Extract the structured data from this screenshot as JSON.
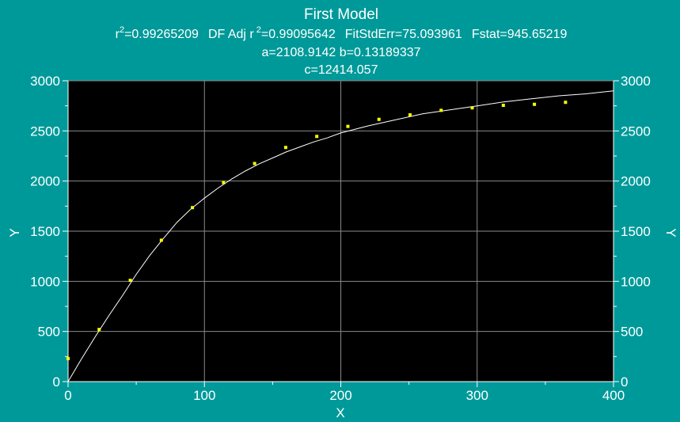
{
  "chart_data": {
    "type": "scatter",
    "title": "First Model",
    "stats_line": {
      "r2_prefix": "r",
      "r2_sup": "2",
      "r2_value": "=0.99265209",
      "adj_prefix": "DF Adj r",
      "adj_sup": "2",
      "adj_value": "=0.99095642",
      "fitstderr": "FitStdErr=75.093961",
      "fstat": "Fstat=945.65219"
    },
    "params_line1": "a=2108.9142 b=0.13189337",
    "params_line2": "c=12414.057",
    "xlabel": "X",
    "ylabel_left": "Y",
    "ylabel_right": "Y",
    "xlim": [
      0,
      400
    ],
    "ylim": [
      0,
      3000
    ],
    "x_ticks": [
      0,
      100,
      200,
      300,
      400
    ],
    "y_ticks": [
      0,
      500,
      1000,
      1500,
      2000,
      2500,
      3000
    ],
    "grid": true,
    "background": "#000000",
    "page_background": "#009999",
    "point_color": "#ffff00",
    "curve_color": "#ffffff",
    "points": [
      {
        "x": 0,
        "y": 230
      },
      {
        "x": 22.8,
        "y": 520
      },
      {
        "x": 45.6,
        "y": 1010
      },
      {
        "x": 68.4,
        "y": 1410
      },
      {
        "x": 91.2,
        "y": 1735
      },
      {
        "x": 114,
        "y": 1985
      },
      {
        "x": 136.8,
        "y": 2175
      },
      {
        "x": 159.6,
        "y": 2335
      },
      {
        "x": 182.4,
        "y": 2445
      },
      {
        "x": 205.2,
        "y": 2545
      },
      {
        "x": 228,
        "y": 2615
      },
      {
        "x": 250.8,
        "y": 2660
      },
      {
        "x": 273.6,
        "y": 2705
      },
      {
        "x": 296.4,
        "y": 2730
      },
      {
        "x": 319.2,
        "y": 2755
      },
      {
        "x": 342,
        "y": 2765
      },
      {
        "x": 364.8,
        "y": 2785
      }
    ],
    "fit_curve": [
      {
        "x": 0,
        "y": 0
      },
      {
        "x": 10,
        "y": 230
      },
      {
        "x": 20,
        "y": 450
      },
      {
        "x": 30,
        "y": 660
      },
      {
        "x": 40,
        "y": 860
      },
      {
        "x": 50,
        "y": 1070
      },
      {
        "x": 60,
        "y": 1260
      },
      {
        "x": 70,
        "y": 1430
      },
      {
        "x": 80,
        "y": 1590
      },
      {
        "x": 90,
        "y": 1720
      },
      {
        "x": 100,
        "y": 1830
      },
      {
        "x": 110,
        "y": 1930
      },
      {
        "x": 120,
        "y": 2020
      },
      {
        "x": 130,
        "y": 2100
      },
      {
        "x": 140,
        "y": 2170
      },
      {
        "x": 150,
        "y": 2230
      },
      {
        "x": 160,
        "y": 2290
      },
      {
        "x": 170,
        "y": 2340
      },
      {
        "x": 180,
        "y": 2390
      },
      {
        "x": 190,
        "y": 2430
      },
      {
        "x": 200,
        "y": 2480
      },
      {
        "x": 220,
        "y": 2550
      },
      {
        "x": 240,
        "y": 2610
      },
      {
        "x": 260,
        "y": 2670
      },
      {
        "x": 280,
        "y": 2710
      },
      {
        "x": 300,
        "y": 2750
      },
      {
        "x": 320,
        "y": 2790
      },
      {
        "x": 340,
        "y": 2820
      },
      {
        "x": 360,
        "y": 2850
      },
      {
        "x": 380,
        "y": 2870
      },
      {
        "x": 400,
        "y": 2900
      }
    ]
  }
}
